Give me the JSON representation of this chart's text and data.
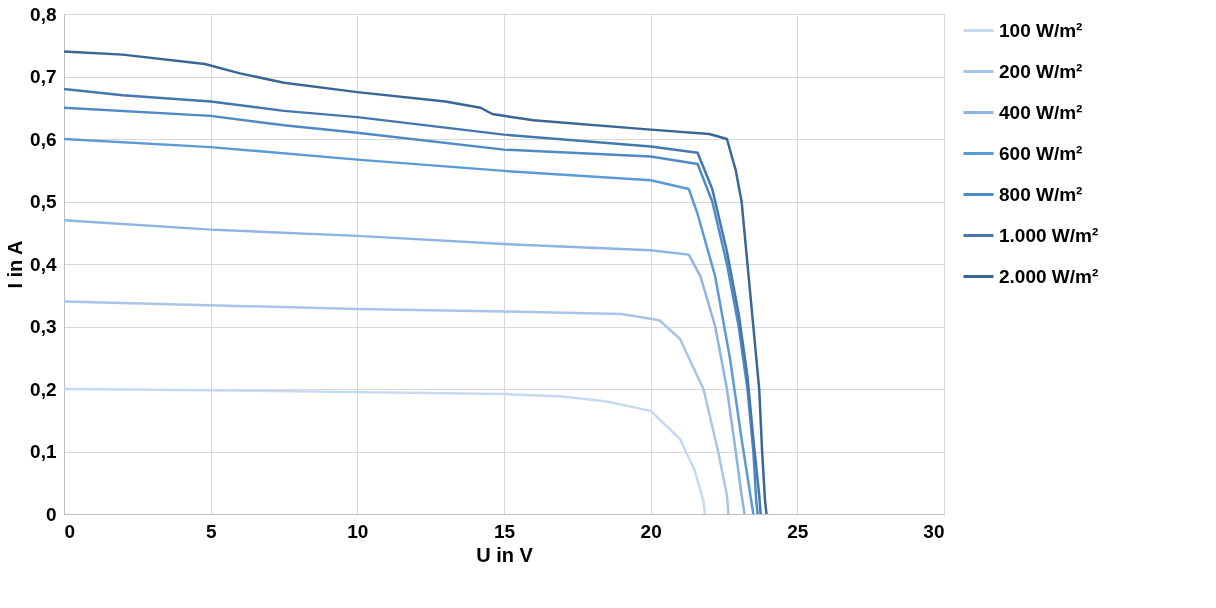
{
  "chart_data": {
    "type": "line",
    "xlabel": "U in V",
    "ylabel": "I in A",
    "xlim": [
      0,
      30
    ],
    "ylim": [
      0,
      0.8
    ],
    "xticks": [
      0,
      5,
      10,
      15,
      20,
      25,
      30
    ],
    "yticks": [
      0,
      {
        "value": 0.1,
        "label": "0,1"
      },
      {
        "value": 0.2,
        "label": "0,2"
      },
      {
        "value": 0.3,
        "label": "0,3"
      },
      {
        "value": 0.4,
        "label": "0,4"
      },
      {
        "value": 0.5,
        "label": "0,5"
      },
      {
        "value": 0.6,
        "label": "0,6"
      },
      {
        "value": 0.7,
        "label": "0,7"
      },
      {
        "value": 0.8,
        "label": "0,8"
      }
    ],
    "grid": true,
    "legend": "right",
    "marker": "none",
    "line_style": "solid",
    "series": [
      {
        "name": "100 W/m²",
        "color": "#c5d9f1",
        "x": [
          0,
          5,
          10,
          15,
          17,
          18.5,
          20,
          21,
          21.5,
          21.8,
          21.85
        ],
        "values": [
          0.2,
          0.198,
          0.195,
          0.192,
          0.188,
          0.18,
          0.165,
          0.12,
          0.07,
          0.02,
          0
        ]
      },
      {
        "name": "200 W/m²",
        "color": "#a9c4e8",
        "x": [
          0,
          10,
          15,
          19,
          20.3,
          21,
          21.8,
          22.3,
          22.6,
          22.65
        ],
        "values": [
          0.34,
          0.328,
          0.324,
          0.32,
          0.31,
          0.28,
          0.2,
          0.1,
          0.03,
          0
        ]
      },
      {
        "name": "400 W/m²",
        "color": "#8db4e2",
        "x": [
          0,
          5,
          10,
          15,
          20,
          21.3,
          21.7,
          22.2,
          22.6,
          22.9,
          23.1,
          23.2
        ],
        "values": [
          0.47,
          0.455,
          0.445,
          0.432,
          0.422,
          0.415,
          0.38,
          0.3,
          0.2,
          0.1,
          0.03,
          0
        ]
      },
      {
        "name": "600 W/m²",
        "color": "#5b9bd5",
        "x": [
          0,
          5,
          10,
          15,
          20,
          21.3,
          21.6,
          22.2,
          22.7,
          23.1,
          23.4,
          23.5
        ],
        "values": [
          0.6,
          0.587,
          0.567,
          0.549,
          0.534,
          0.52,
          0.48,
          0.38,
          0.25,
          0.12,
          0.03,
          0
        ]
      },
      {
        "name": "800 W/m²",
        "color": "#4f8ac5",
        "x": [
          0,
          5,
          7.5,
          10,
          15,
          20,
          21.6,
          22.1,
          22.6,
          23,
          23.3,
          23.5,
          23.6,
          23.65
        ],
        "values": [
          0.65,
          0.637,
          0.622,
          0.61,
          0.583,
          0.572,
          0.56,
          0.5,
          0.4,
          0.3,
          0.2,
          0.1,
          0.02,
          0
        ]
      },
      {
        "name": "1.000 W/m²",
        "color": "#4377ad",
        "x": [
          0,
          2,
          5,
          7.5,
          10,
          15,
          20,
          21.6,
          22.1,
          22.6,
          23,
          23.3,
          23.5,
          23.7,
          23.75
        ],
        "values": [
          0.68,
          0.67,
          0.66,
          0.645,
          0.635,
          0.607,
          0.588,
          0.578,
          0.52,
          0.42,
          0.32,
          0.22,
          0.12,
          0.03,
          0
        ]
      },
      {
        "name": "2.000 W/m²",
        "color": "#3a6694",
        "x": [
          0,
          2,
          4.8,
          6,
          7.5,
          10,
          13,
          14.2,
          14.6,
          16,
          20,
          22,
          22.6,
          22.9,
          23.1,
          23.3,
          23.5,
          23.7,
          23.8,
          23.9,
          23.95
        ],
        "values": [
          0.74,
          0.735,
          0.72,
          0.705,
          0.69,
          0.675,
          0.66,
          0.65,
          0.64,
          0.63,
          0.615,
          0.608,
          0.6,
          0.55,
          0.5,
          0.4,
          0.3,
          0.2,
          0.1,
          0.02,
          0
        ]
      }
    ]
  }
}
